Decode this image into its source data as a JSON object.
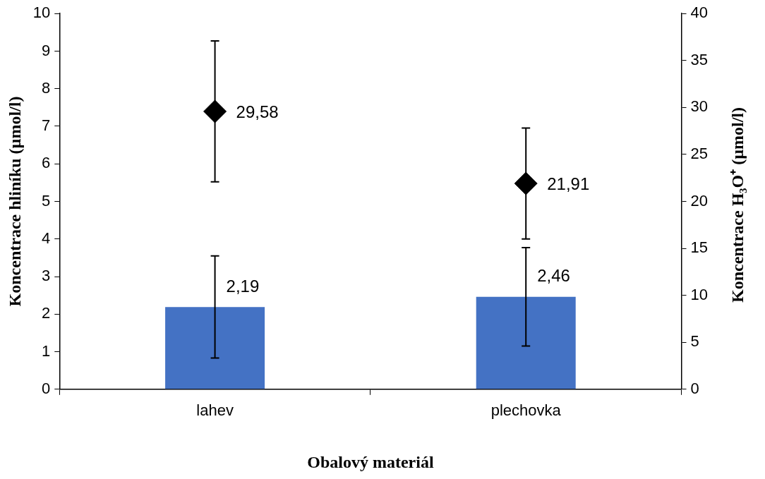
{
  "chart_data": {
    "type": "bar",
    "xlabel": "Obalový materiál",
    "ylabel": "Koncentrace hliníku (µmol/l)",
    "y2label": "Koncentrace H₃O⁺ (µmol/l)",
    "categories": [
      "lahev",
      "plechovka"
    ],
    "series": [
      {
        "color": "#4472c4",
        "values": [
          2.19,
          2.46
        ],
        "errors": [
          1.36,
          1.31
        ],
        "value_labels": [
          "2,19",
          "2,46"
        ]
      },
      {
        "type": "scatter",
        "axis": "y2",
        "color": "#000000",
        "marker": "diamond",
        "x": [
          "lahev",
          "plechovka"
        ],
        "values": [
          29.58,
          21.91
        ],
        "errors": [
          7.5,
          5.9
        ],
        "value_labels": [
          "29,58",
          "21,91"
        ]
      }
    ],
    "ylim": [
      0,
      10
    ],
    "yticks": [
      0,
      1,
      2,
      3,
      4,
      5,
      6,
      7,
      8,
      9,
      10
    ],
    "y2lim": [
      0,
      40
    ],
    "y2ticks": [
      0,
      5,
      10,
      15,
      20,
      25,
      30,
      35,
      40
    ],
    "grid": false,
    "legend": false
  }
}
